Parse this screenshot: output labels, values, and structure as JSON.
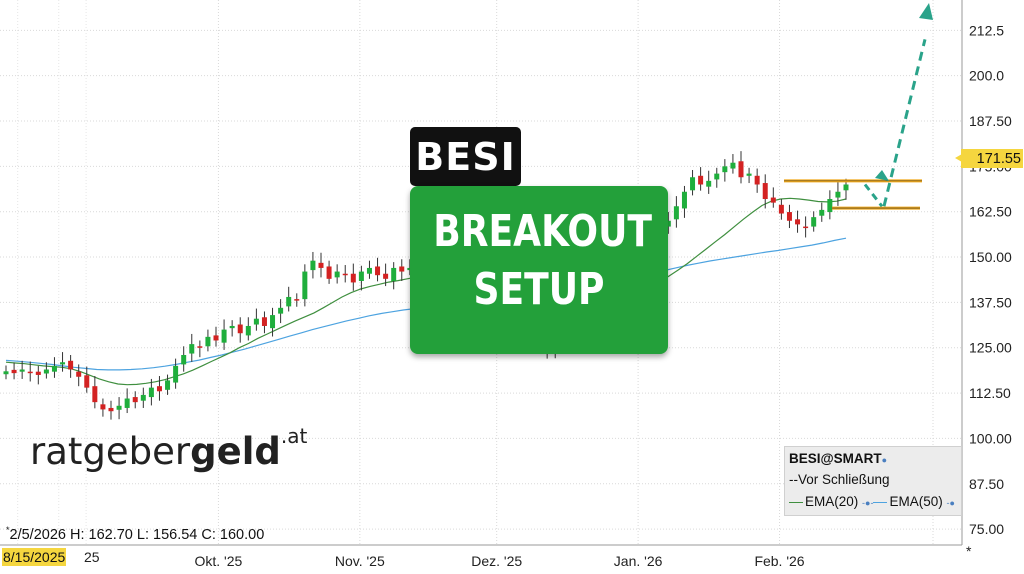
{
  "chart_data": {
    "type": "candlestick",
    "symbol": "BESI",
    "legend_title": "BESI@SMART",
    "legend_items": [
      "--Vor Schließung",
      "EMA(20)",
      "EMA(50)"
    ],
    "y_ticks": [
      "212.5",
      "200.0",
      "187.50",
      "175.00",
      "162.50",
      "150.00",
      "137.50",
      "125.00",
      "112.50",
      "100.00",
      "87.50",
      "75.00"
    ],
    "ylim": [
      72,
      217
    ],
    "x_labels": [
      {
        "label": "Okt. '25",
        "day": 47
      },
      {
        "label": "Nov. '25",
        "day": 78
      },
      {
        "label": "Dez. '25",
        "day": 108
      },
      {
        "label": "Jan. '26",
        "day": 139
      },
      {
        "label": "Feb. '26",
        "day": 170
      }
    ],
    "x_days_range": [
      0,
      210
    ],
    "last_price": "171.55",
    "start_date_label": "8/15/2025",
    "start_date_tail": "25",
    "ohlc_line": {
      "asterisk": "*",
      "text": "2/5/2026 H: 162.70 L: 156.54 C: 160.00"
    },
    "annotation": {
      "ticker": "BESI",
      "line1": "BREAKOUT",
      "line2": "SETUP"
    },
    "resistance_level": 171,
    "support_level": 163.5,
    "breakout_target": 213,
    "closes": [
      118.5,
      118,
      119,
      118,
      117.5,
      119,
      120,
      121,
      119,
      117,
      114,
      110,
      108,
      107.5,
      109,
      111,
      110,
      112,
      114,
      113,
      116,
      120,
      123,
      126,
      125,
      128,
      127,
      130,
      131,
      129,
      131,
      133,
      131,
      134,
      136,
      139,
      138,
      146,
      149,
      147,
      144,
      146,
      145,
      143,
      146,
      147,
      145,
      144,
      147,
      146,
      147,
      149,
      148,
      150,
      149,
      148,
      149,
      148,
      148,
      147,
      145,
      143,
      139,
      136,
      128,
      126,
      125,
      124,
      127,
      129,
      131,
      132,
      133,
      135,
      137,
      140,
      144,
      148,
      151,
      153,
      155,
      158,
      160,
      164,
      168,
      172,
      170,
      171,
      173,
      175,
      176,
      172,
      173,
      170,
      166,
      165,
      162,
      160,
      159,
      158,
      161,
      163,
      166,
      168,
      170
    ],
    "ema20": [
      121,
      120.8,
      120.6,
      120.3,
      120,
      119.8,
      119.6,
      119.2,
      118.4,
      117.4,
      116.4,
      115.6,
      115,
      114.8,
      114.9,
      115.2,
      115.6,
      116.2,
      117,
      117.8,
      118.8,
      120,
      121.2,
      122.4,
      123.6,
      125,
      126.2,
      127.6,
      128.8,
      130,
      131.2,
      132.4,
      133.5,
      134.6,
      136,
      137.5,
      139,
      140.2,
      141.2,
      141.9,
      142.5,
      143.1,
      143.5,
      144,
      144.5,
      145,
      145.3,
      145.7,
      146.1,
      146.4,
      146.7,
      147,
      147.2,
      147.4,
      147.3,
      147,
      146.4,
      145.5,
      144.3,
      143,
      141.6,
      140.5,
      139.6,
      139,
      138.8,
      138.7,
      138.9,
      139.4,
      140.2,
      141.4,
      143,
      144.7,
      146.4,
      148.2,
      150.2,
      152.2,
      154.2,
      156.2,
      158.3,
      160.4,
      162.4,
      164.2,
      165.4,
      166,
      166.2,
      166,
      165.7,
      165.3,
      165.2,
      165.4,
      166
    ],
    "ema50": [
      121.5,
      121.3,
      121,
      120.7,
      120.4,
      120,
      119.6,
      119.3,
      119,
      118.9,
      118.9,
      119,
      119.2,
      119.5,
      119.9,
      120.4,
      121,
      121.6,
      122.3,
      123,
      123.8,
      124.6,
      125.5,
      126.4,
      127.3,
      128.2,
      129.1,
      130,
      130.8,
      131.6,
      132.4,
      133.1,
      133.8,
      134.4,
      134.9,
      135.4,
      135.8,
      136.1,
      136.3,
      136.4,
      136.4,
      136.4,
      136.5,
      136.7,
      137,
      137.3,
      137.7,
      138.2,
      138.7,
      139.3,
      140,
      140.7,
      141.5,
      142.3,
      143.1,
      143.9,
      144.7,
      145.5,
      146.3,
      147,
      147.7,
      148.3,
      148.9,
      149.4,
      149.9,
      150.4,
      150.9,
      151.4,
      151.8,
      152.3,
      152.8,
      153.3,
      153.9,
      154.6,
      155.2
    ]
  }
}
